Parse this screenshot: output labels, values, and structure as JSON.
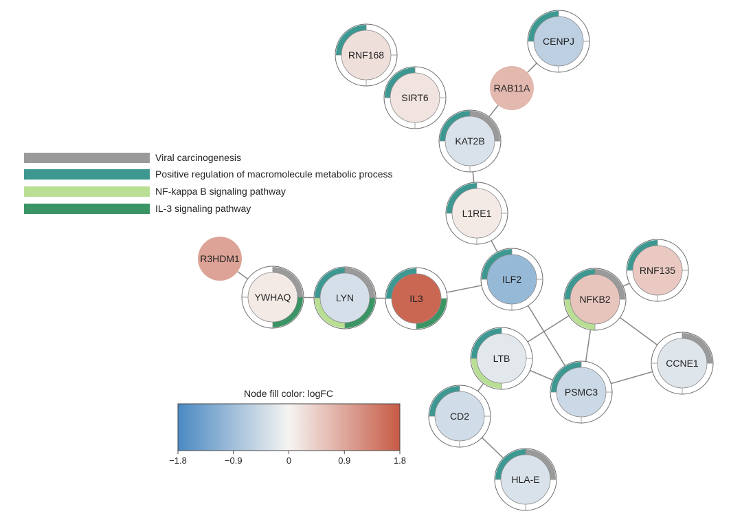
{
  "legend": {
    "items": [
      {
        "key": "viral",
        "label": "Viral carcinogenesis",
        "color": "#9a9a9a"
      },
      {
        "key": "posreg",
        "label": "Positive regulation of macromolecule metabolic process",
        "color": "#3d9892"
      },
      {
        "key": "nfkb",
        "label": "NF-kappa B signaling pathway",
        "color": "#b8df94"
      },
      {
        "key": "il3",
        "label": "IL-3 signaling pathway",
        "color": "#3a9464"
      }
    ]
  },
  "colorbar": {
    "title": "Node fill color:  logFC",
    "min": -1.8,
    "max": 1.8,
    "ticks": [
      "−1.8",
      "−0.9",
      "0",
      "0.9",
      "1.8"
    ],
    "tick_values": [
      -1.8,
      -0.9,
      0,
      0.9,
      1.8
    ],
    "low_color": "#4a89c2",
    "mid_color": "#f6f4f2",
    "high_color": "#c65a45"
  },
  "nodes": [
    {
      "id": "RNF168",
      "label": "RNF168",
      "logfc": 0.25,
      "ring": true,
      "pathways": [
        "posreg"
      ]
    },
    {
      "id": "CENPJ",
      "label": "CENPJ",
      "logfc": -0.6,
      "ring": true,
      "pathways": [
        "posreg"
      ]
    },
    {
      "id": "RAB11A",
      "label": "RAB11A",
      "logfc": 0.7,
      "ring": false,
      "pathways": []
    },
    {
      "id": "SIRT6",
      "label": "SIRT6",
      "logfc": 0.2,
      "ring": true,
      "pathways": [
        "posreg"
      ]
    },
    {
      "id": "KAT2B",
      "label": "KAT2B",
      "logfc": -0.3,
      "ring": true,
      "pathways": [
        "viral",
        "posreg"
      ]
    },
    {
      "id": "L1RE1",
      "label": "L1RE1",
      "logfc": 0.12,
      "ring": true,
      "pathways": [
        "posreg"
      ]
    },
    {
      "id": "R3HDM1",
      "label": "R3HDM1",
      "logfc": 0.95,
      "ring": false,
      "pathways": []
    },
    {
      "id": "YWHAQ",
      "label": "YWHAQ",
      "logfc": 0.12,
      "ring": true,
      "pathways": [
        "viral",
        "il3"
      ]
    },
    {
      "id": "LYN",
      "label": "LYN",
      "logfc": -0.35,
      "ring": true,
      "pathways": [
        "viral",
        "posreg",
        "nfkb",
        "il3"
      ]
    },
    {
      "id": "IL3",
      "label": "IL3",
      "logfc": 1.65,
      "ring": true,
      "pathways": [
        "posreg",
        "il3"
      ]
    },
    {
      "id": "ILF2",
      "label": "ILF2",
      "logfc": -1.0,
      "ring": true,
      "pathways": [
        "posreg"
      ]
    },
    {
      "id": "RNF135",
      "label": "RNF135",
      "logfc": 0.5,
      "ring": true,
      "pathways": [
        "posreg"
      ]
    },
    {
      "id": "NFKB2",
      "label": "NFKB2",
      "logfc": 0.55,
      "ring": true,
      "pathways": [
        "viral",
        "posreg",
        "nfkb"
      ]
    },
    {
      "id": "LTB",
      "label": "LTB",
      "logfc": -0.2,
      "ring": true,
      "pathways": [
        "posreg",
        "nfkb"
      ]
    },
    {
      "id": "CCNE1",
      "label": "CCNE1",
      "logfc": -0.25,
      "ring": true,
      "pathways": [
        "viral"
      ]
    },
    {
      "id": "PSMC3",
      "label": "PSMC3",
      "logfc": -0.45,
      "ring": true,
      "pathways": [
        "posreg"
      ]
    },
    {
      "id": "CD2",
      "label": "CD2",
      "logfc": -0.4,
      "ring": true,
      "pathways": [
        "posreg"
      ]
    },
    {
      "id": "HLA-E",
      "label": "HLA-E",
      "logfc": -0.3,
      "ring": true,
      "pathways": [
        "viral",
        "posreg"
      ]
    }
  ],
  "edges": [
    [
      "CENPJ",
      "RAB11A"
    ],
    [
      "RAB11A",
      "KAT2B"
    ],
    [
      "KAT2B",
      "L1RE1"
    ],
    [
      "L1RE1",
      "ILF2"
    ],
    [
      "ILF2",
      "IL3"
    ],
    [
      "IL3",
      "LYN"
    ],
    [
      "LYN",
      "YWHAQ"
    ],
    [
      "YWHAQ",
      "R3HDM1"
    ],
    [
      "ILF2",
      "PSMC3"
    ],
    [
      "NFKB2",
      "RNF135"
    ],
    [
      "NFKB2",
      "LTB"
    ],
    [
      "NFKB2",
      "PSMC3"
    ],
    [
      "NFKB2",
      "CCNE1"
    ],
    [
      "LTB",
      "PSMC3"
    ],
    [
      "LTB",
      "CD2"
    ],
    [
      "PSMC3",
      "CCNE1"
    ],
    [
      "CD2",
      "HLA-E"
    ]
  ]
}
